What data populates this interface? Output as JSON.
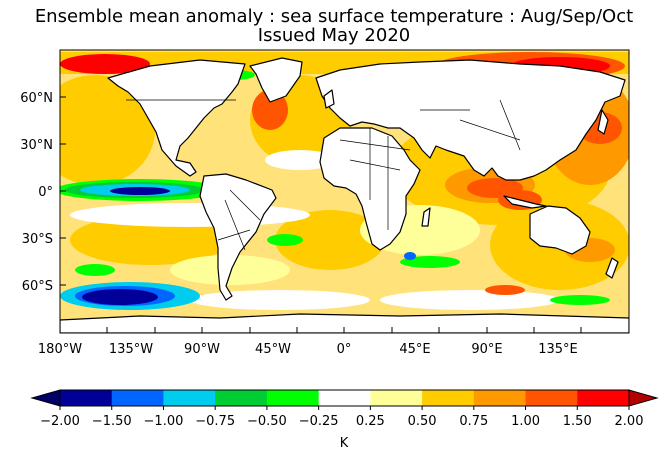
{
  "title": "Ensemble mean anomaly : sea surface temperature : Aug/Sep/Oct",
  "subtitle": "Issued May 2020",
  "map": {
    "projection": "equirectangular",
    "lon_range": [
      -180,
      180
    ],
    "lat_range": [
      -90,
      90
    ],
    "lat_labels": [
      "60°N",
      "30°N",
      "0°",
      "30°S",
      "60°S"
    ],
    "lon_labels": [
      "180°W",
      "135°W",
      "90°W",
      "45°W",
      "0°",
      "45°E",
      "90°E",
      "135°E"
    ]
  },
  "colorbar": {
    "unit": "K",
    "tick_labels": [
      "−2.00",
      "−1.50",
      "−1.00",
      "−0.75",
      "−0.50",
      "−0.25",
      "0.25",
      "0.50",
      "0.75",
      "1.00",
      "1.50",
      "2.00"
    ],
    "under_color": "#000066",
    "over_color": "#b30000",
    "colors": [
      "#000099",
      "#0066ff",
      "#00ccee",
      "#00cc33",
      "#00ff00",
      "#ffffff",
      "#ffff99",
      "#ffcc00",
      "#ff9900",
      "#ff5500",
      "#ff0000"
    ]
  },
  "colors": {
    "land": "#ffffff",
    "coastline": "#000000",
    "ocean_background": "#ffff99"
  }
}
